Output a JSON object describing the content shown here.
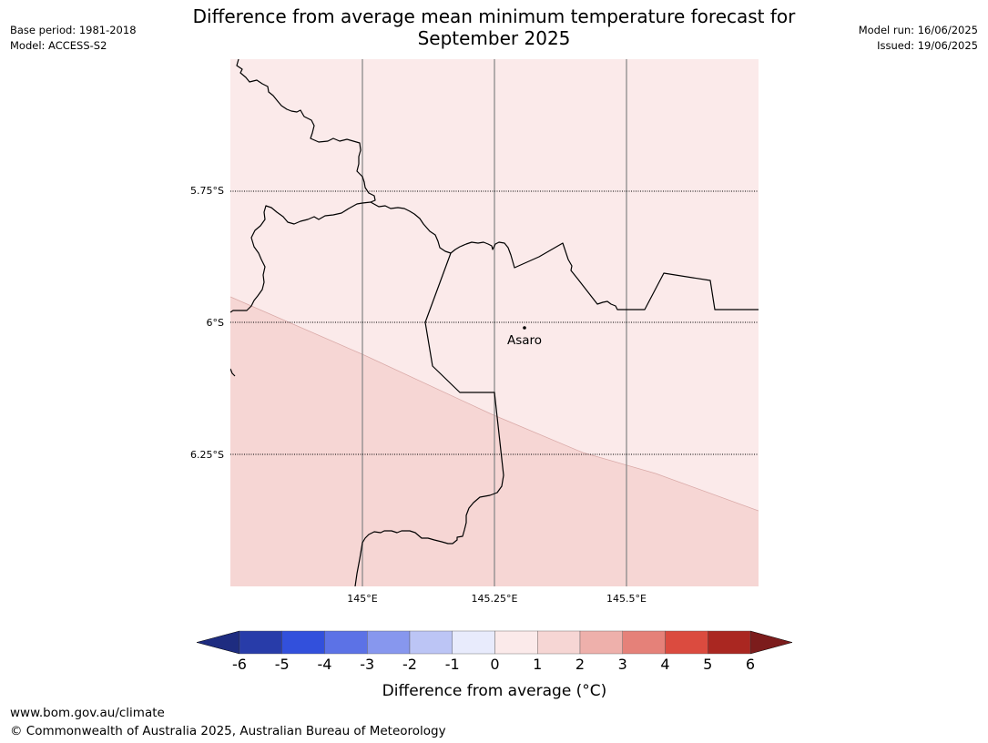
{
  "header": {
    "title_line1": "Difference from average mean minimum temperature forecast for",
    "title_line2": "September 2025",
    "base_period": "Base period: 1981-2018",
    "model": "Model: ACCESS-S2",
    "model_run": "Model run: 16/06/2025",
    "issued": "Issued: 19/06/2025"
  },
  "map": {
    "lat_labels": [
      "5.75°S",
      "6°S",
      "6.25°S"
    ],
    "lon_labels": [
      "145°E",
      "145.25°E",
      "145.5°E"
    ],
    "place_name": "Asaro",
    "fill_colors": {
      "upper_band": "#fbeaea",
      "lower_band": "#f6d6d4"
    }
  },
  "colorbar": {
    "tick_labels": [
      "-6",
      "-5",
      "-4",
      "-3",
      "-2",
      "-1",
      "0",
      "1",
      "2",
      "3",
      "4",
      "5",
      "6"
    ],
    "segment_colors": [
      "#283ca9",
      "#3250dc",
      "#5c72e6",
      "#8797ee",
      "#bcc5f5",
      "#e8ebfc",
      "#fbeaea",
      "#f6d6d4",
      "#eeb0ab",
      "#e58179",
      "#db4b3f",
      "#aa2721"
    ],
    "low_extend_color": "#1e2c80",
    "high_extend_color": "#7c1c1c",
    "label": "Difference from average (°C)"
  },
  "footer": {
    "url": "www.bom.gov.au/climate",
    "copyright": "© Commonwealth of Australia 2025, Australian Bureau of Meteorology"
  }
}
